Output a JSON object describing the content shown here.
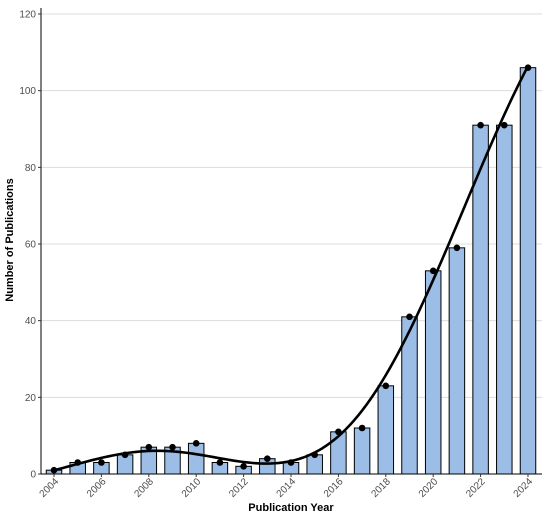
{
  "chart_data": {
    "type": "bar",
    "title": "",
    "xlabel": "Publication Year",
    "ylabel": "Number of Publications",
    "x": [
      2004,
      2005,
      2006,
      2007,
      2008,
      2009,
      2010,
      2011,
      2012,
      2013,
      2014,
      2015,
      2016,
      2017,
      2018,
      2019,
      2020,
      2021,
      2022,
      2023,
      2024
    ],
    "values": [
      1,
      3,
      3,
      5,
      7,
      7,
      8,
      3,
      2,
      4,
      3,
      5,
      11,
      12,
      23,
      41,
      53,
      59,
      91,
      91,
      106
    ],
    "xticks": [
      "2004",
      "2006",
      "2008",
      "2010",
      "2012",
      "2014",
      "2016",
      "2018",
      "2020",
      "2022",
      "2024"
    ],
    "yticks": [
      0,
      20,
      40,
      60,
      80,
      100,
      120
    ],
    "ylim": [
      0,
      120
    ],
    "grid": "horizontal",
    "overlays": [
      "points",
      "smooth trend line"
    ],
    "colors": {
      "bar_fill": "#9bbde6",
      "bar_stroke": "#000000",
      "point": "#000000",
      "trend_line": "#000000",
      "grid": "#dcdcdc"
    }
  }
}
